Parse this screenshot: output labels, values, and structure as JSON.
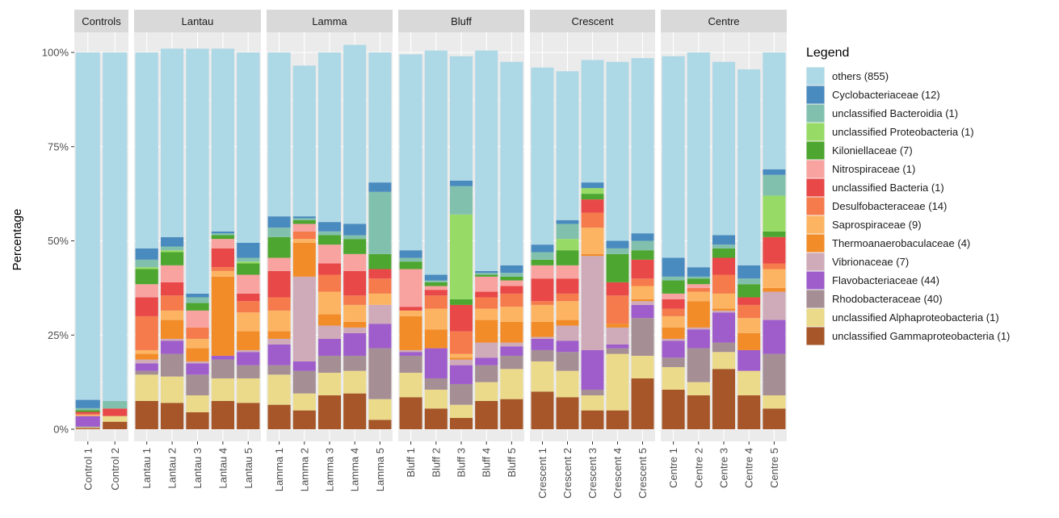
{
  "chart_data": {
    "type": "bar",
    "stacked": true,
    "ylabel": "Percentage",
    "xlabel": "",
    "ylim": [
      0,
      100
    ],
    "y_ticks": [
      "0%",
      "25%",
      "50%",
      "75%",
      "100%"
    ],
    "legend_title": "Legend",
    "legend_position": "right",
    "taxa": [
      {
        "name": "unclassified Gammaproteobacteria (1)",
        "color": "#A65628"
      },
      {
        "name": "unclassified Alphaproteobacteria (1)",
        "color": "#EBDA8A"
      },
      {
        "name": "Rhodobacteraceae (40)",
        "color": "#A58E94"
      },
      {
        "name": "Flavobacteriaceae (44)",
        "color": "#9E5DCB"
      },
      {
        "name": "Vibrionaceae (7)",
        "color": "#CFAAB8"
      },
      {
        "name": "Thermoanaerobaculaceae (4)",
        "color": "#F28C28"
      },
      {
        "name": "Saprospiraceae (9)",
        "color": "#FDB462"
      },
      {
        "name": "Desulfobacteraceae (14)",
        "color": "#F57A4C"
      },
      {
        "name": "unclassified Bacteria (1)",
        "color": "#E84848"
      },
      {
        "name": "Nitrospiraceae (1)",
        "color": "#F8A3A0"
      },
      {
        "name": "Kiloniellaceae (7)",
        "color": "#4DA62F"
      },
      {
        "name": "unclassified Proteobacteria (1)",
        "color": "#97DB66"
      },
      {
        "name": "unclassified Bacteroidia (1)",
        "color": "#82C0AE"
      },
      {
        "name": "Cyclobacteriaceae (12)",
        "color": "#4A8BBF"
      },
      {
        "name": "others (855)",
        "color": "#ADD8E6"
      }
    ],
    "legend_order": [
      14,
      13,
      12,
      11,
      10,
      9,
      8,
      7,
      6,
      5,
      4,
      3,
      2,
      1,
      0
    ],
    "facets": [
      {
        "name": "Controls",
        "samples": [
          {
            "label": "Control 1",
            "values": [
              0.3,
              0.2,
              0.2,
              2.8,
              0,
              0,
              0.3,
              0.3,
              0.5,
              0,
              0.5,
              0,
              0.5,
              2.2,
              92.2
            ]
          },
          {
            "label": "Control 2",
            "values": [
              2.0,
              1.5,
              0,
              0,
              0,
              0,
              0,
              0,
              2.0,
              0,
              0,
              0,
              2.0,
              0,
              92.5
            ]
          }
        ]
      },
      {
        "name": "Lantau",
        "samples": [
          {
            "label": "Lantau 1",
            "values": [
              7.5,
              7.0,
              1.0,
              2.0,
              1.0,
              1.5,
              1.0,
              9.0,
              5.0,
              3.5,
              4.0,
              0.5,
              2.0,
              3.0,
              52.0
            ]
          },
          {
            "label": "Lantau 2",
            "values": [
              7.0,
              7.0,
              6.0,
              3.5,
              0.5,
              5.0,
              2.5,
              4.0,
              3.5,
              4.5,
              3.5,
              0.5,
              1.0,
              2.5,
              50.0
            ]
          },
          {
            "label": "Lantau 3",
            "values": [
              4.5,
              4.5,
              5.5,
              3.0,
              0.5,
              3.5,
              2.5,
              3.0,
              0,
              4.5,
              2.0,
              0,
              1.5,
              1.0,
              65.0
            ]
          },
          {
            "label": "Lantau 4",
            "values": [
              7.5,
              6.0,
              5.0,
              1.0,
              0,
              21.0,
              1.5,
              1.0,
              5.0,
              2.5,
              1.0,
              0,
              0.5,
              0.5,
              48.5
            ]
          },
          {
            "label": "Lantau 5",
            "values": [
              7.0,
              6.5,
              3.5,
              3.5,
              0.5,
              5.0,
              5.0,
              3.0,
              2.0,
              5.0,
              3.0,
              0.5,
              1.0,
              4.0,
              50.5
            ]
          }
        ]
      },
      {
        "name": "Lamma",
        "samples": [
          {
            "label": "Lamma 1",
            "values": [
              6.5,
              8.0,
              2.5,
              5.5,
              1.5,
              2.0,
              5.5,
              3.5,
              7.0,
              3.5,
              5.5,
              0,
              2.5,
              3.0,
              43.5
            ]
          },
          {
            "label": "Lamma 2",
            "values": [
              5.0,
              4.5,
              6.0,
              2.5,
              22.5,
              9.0,
              1.0,
              2.0,
              0,
              2.0,
              1.0,
              0,
              0.5,
              0.5,
              40.0
            ]
          },
          {
            "label": "Lamma 3",
            "values": [
              9.0,
              6.0,
              4.5,
              4.5,
              3.5,
              3.0,
              6.0,
              4.5,
              3.0,
              5.0,
              2.5,
              0,
              1.0,
              2.5,
              45.0
            ]
          },
          {
            "label": "Lamma 4",
            "values": [
              9.5,
              6.0,
              4.0,
              6.0,
              1.5,
              1.5,
              4.5,
              2.5,
              6.5,
              4.5,
              4.0,
              0,
              1.0,
              3.0,
              47.5
            ]
          },
          {
            "label": "Lamma 5",
            "values": [
              2.5,
              5.5,
              13.5,
              6.5,
              5.0,
              0,
              3.0,
              4.0,
              2.5,
              0,
              4.0,
              0,
              16.5,
              2.5,
              34.5
            ]
          }
        ]
      },
      {
        "name": "Bluff",
        "samples": [
          {
            "label": "Bluff 1",
            "values": [
              8.5,
              6.5,
              4.5,
              1.0,
              0.5,
              9.0,
              1.5,
              0,
              1.0,
              10.0,
              2.0,
              0,
              1.0,
              2.0,
              52.0
            ]
          },
          {
            "label": "Bluff 2",
            "values": [
              5.5,
              5.0,
              3.0,
              8.0,
              0,
              5.0,
              5.5,
              3.5,
              1.5,
              1.0,
              1.0,
              0,
              0.5,
              1.5,
              59.5
            ]
          },
          {
            "label": "Bluff 3",
            "values": [
              3.0,
              3.5,
              5.5,
              5.0,
              1.5,
              0.5,
              1.0,
              6.0,
              7.0,
              0,
              1.5,
              22.5,
              7.5,
              1.5,
              33.0
            ]
          },
          {
            "label": "Bluff 4",
            "values": [
              7.5,
              5.0,
              4.5,
              2.0,
              4.0,
              6.0,
              3.0,
              3.0,
              1.5,
              4.0,
              0.5,
              0,
              0.5,
              0.5,
              58.5
            ]
          },
          {
            "label": "Bluff 5",
            "values": [
              8.0,
              8.0,
              3.5,
              2.5,
              1.0,
              5.5,
              4.0,
              3.5,
              2.0,
              1.5,
              1.0,
              0,
              1.0,
              2.0,
              54.0
            ]
          }
        ]
      },
      {
        "name": "Crescent",
        "samples": [
          {
            "label": "Crescent 1",
            "values": [
              10.0,
              8.0,
              3.0,
              3.0,
              0.5,
              4.0,
              4.5,
              1.0,
              6.0,
              3.5,
              1.5,
              0,
              2.0,
              2.0,
              47.0
            ]
          },
          {
            "label": "Crescent 2",
            "values": [
              8.5,
              7.0,
              5.0,
              3.0,
              4.0,
              1.5,
              5.0,
              2.0,
              4.0,
              3.5,
              4.0,
              3.0,
              4.0,
              1.0,
              39.5
            ]
          },
          {
            "label": "Crescent 3",
            "values": [
              5.0,
              4.0,
              1.5,
              10.5,
              25.0,
              0.5,
              7.0,
              4.0,
              3.5,
              0,
              1.5,
              1.5,
              0,
              1.5,
              32.5
            ]
          },
          {
            "label": "Crescent 4",
            "values": [
              5.0,
              15.0,
              1.5,
              1.0,
              4.5,
              1.0,
              0,
              7.5,
              3.5,
              0,
              7.5,
              0,
              1.5,
              2.0,
              47.5
            ]
          },
          {
            "label": "Crescent 5",
            "values": [
              13.5,
              6.0,
              10.0,
              3.5,
              1.0,
              0.5,
              3.5,
              2.0,
              5.0,
              0,
              2.5,
              0,
              2.5,
              2.0,
              46.5
            ]
          }
        ]
      },
      {
        "name": "Centre",
        "samples": [
          {
            "label": "Centre 1",
            "values": [
              10.5,
              6.0,
              2.5,
              4.5,
              0.5,
              3.0,
              3.0,
              2.0,
              2.5,
              1.5,
              3.5,
              0,
              1.0,
              5.0,
              53.5
            ]
          },
          {
            "label": "Centre 2",
            "values": [
              9.0,
              3.5,
              9.0,
              5.0,
              0.5,
              7.0,
              2.5,
              1.0,
              0,
              1.0,
              1.5,
              0,
              0.5,
              2.5,
              57.0
            ]
          },
          {
            "label": "Centre 3",
            "values": [
              16.0,
              4.5,
              2.5,
              8.0,
              0.5,
              0.5,
              4.0,
              5.0,
              4.5,
              0,
              2.5,
              0,
              1.0,
              2.5,
              46.0
            ]
          },
          {
            "label": "Centre 4",
            "values": [
              9.0,
              6.5,
              0,
              5.5,
              0,
              4.5,
              4.0,
              3.5,
              2.0,
              0,
              3.5,
              0,
              1.5,
              3.5,
              52.0
            ]
          },
          {
            "label": "Centre 5",
            "values": [
              5.5,
              3.5,
              11.0,
              9.0,
              7.5,
              1.0,
              5.0,
              1.5,
              7.0,
              0,
              1.5,
              9.5,
              5.5,
              1.5,
              31.0
            ]
          }
        ]
      }
    ]
  }
}
